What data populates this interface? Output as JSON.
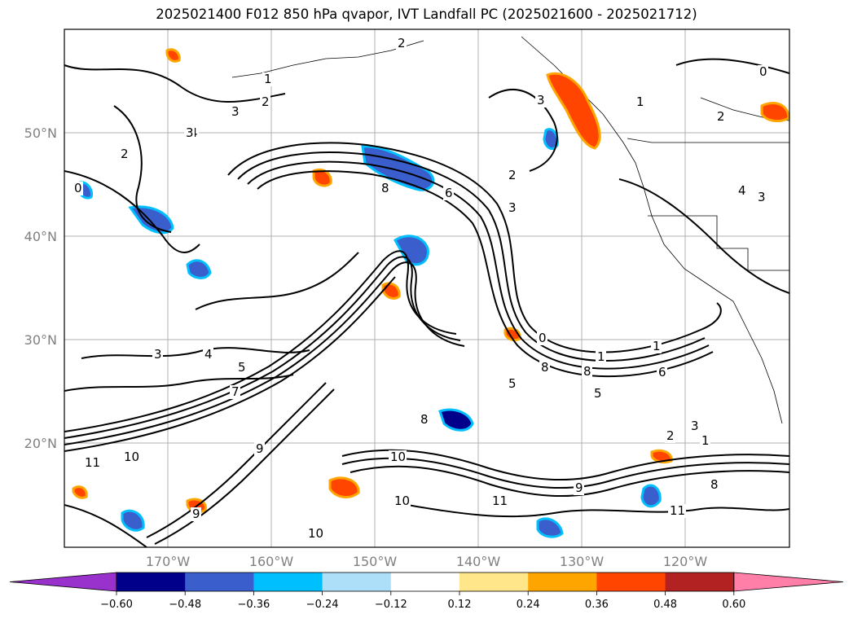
{
  "title": "2025021400 F012 850 hPa qvapor, IVT Landfall PC (2025021600 - 2025021712)",
  "map": {
    "lat_labels": [
      "50°N",
      "40°N",
      "30°N",
      "20°N"
    ],
    "lon_labels": [
      "170°W",
      "160°W",
      "150°W",
      "140°W",
      "130°W",
      "120°W"
    ],
    "extent": {
      "lon": [
        -180,
        -110
      ],
      "lat": [
        10,
        60
      ]
    },
    "gridlines": true,
    "contour_labels": [
      "2",
      "1",
      "2",
      "3",
      "4",
      "2",
      "0",
      "3",
      "1",
      "2",
      "0",
      "4",
      "3",
      "8",
      "6",
      "2",
      "3",
      "3",
      "4",
      "3",
      "5",
      "7",
      "1",
      "0",
      "1",
      "8",
      "6",
      "5",
      "8",
      "5",
      "3",
      "2",
      "1",
      "11",
      "10",
      "9",
      "8",
      "10",
      "11",
      "9",
      "8",
      "11",
      "9",
      "10",
      "10"
    ]
  },
  "colorbar": {
    "ticks": [
      "−0.60",
      "−0.48",
      "−0.36",
      "−0.24",
      "−0.12",
      "0.12",
      "0.24",
      "0.36",
      "0.48",
      "0.60"
    ],
    "extend": "both",
    "colors": [
      "#9932CC",
      "#00008B",
      "#3A5FCD",
      "#00BFFF",
      "#ADDFF8",
      "#FFFFFF",
      "#FFE68A",
      "#FFA500",
      "#FF4500",
      "#B22222",
      "#FF7FA8"
    ]
  }
}
